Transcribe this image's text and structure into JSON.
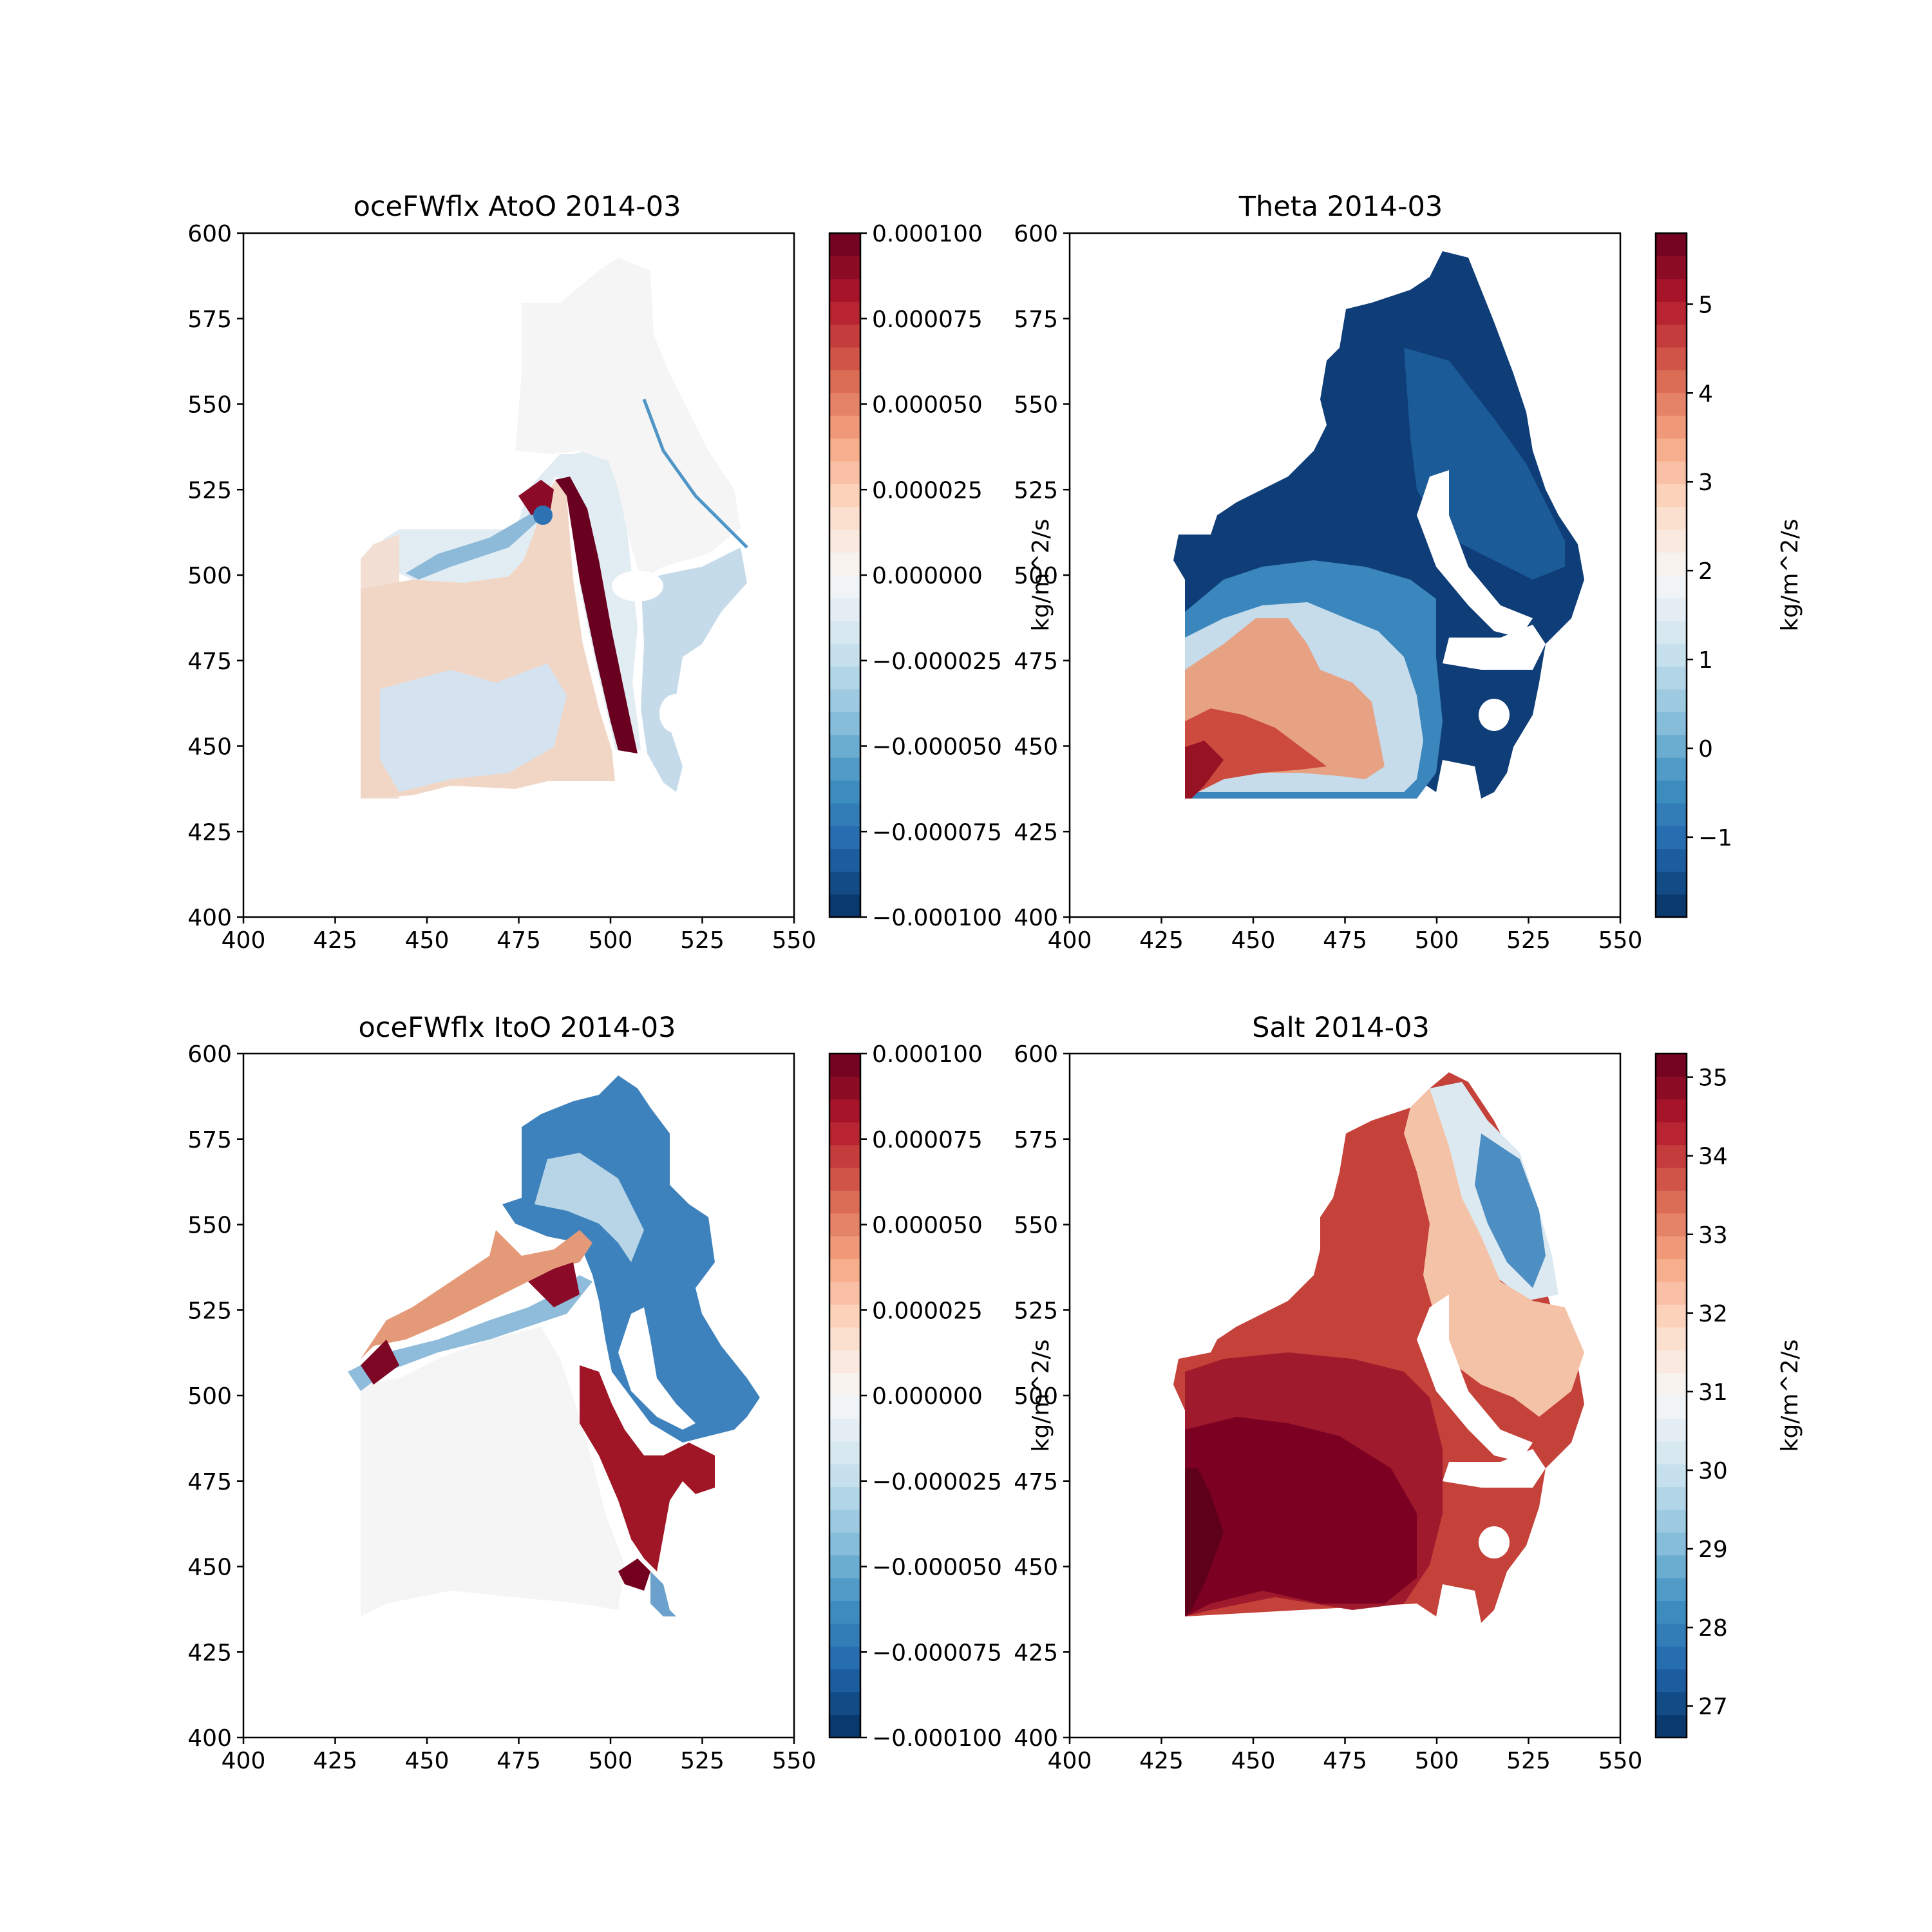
{
  "chart_data": [
    {
      "type": "heatmap",
      "title": "oceFWflx AtoO 2014-03",
      "x_ticks": [
        400,
        425,
        450,
        475,
        500,
        525,
        550
      ],
      "y_ticks": [
        400,
        425,
        450,
        475,
        500,
        525,
        550,
        575,
        600
      ],
      "xlim": [
        400,
        550
      ],
      "ylim": [
        400,
        600
      ],
      "colormap": "RdBu_r (discrete)",
      "colorbar": {
        "range": [
          -0.0001,
          0.0001
        ],
        "ticks": [
          -0.0001,
          -7.5e-05,
          -5e-05,
          -2.5e-05,
          0,
          2.5e-05,
          5e-05,
          7.5e-05,
          0.0001
        ],
        "tick_labels": [
          "−0.000100",
          "−0.000075",
          "−0.000050",
          "−0.000025",
          "0.000000",
          "0.000025",
          "0.000050",
          "0.000075",
          "0.000100"
        ],
        "label": "kg/m^2/s"
      }
    },
    {
      "type": "heatmap",
      "title": "Theta 2014-03",
      "x_ticks": [
        400,
        425,
        450,
        475,
        500,
        525,
        550
      ],
      "y_ticks": [
        400,
        425,
        450,
        475,
        500,
        525,
        550,
        575,
        600
      ],
      "xlim": [
        400,
        550
      ],
      "ylim": [
        400,
        600
      ],
      "colormap": "RdBu_r (discrete)",
      "colorbar": {
        "range": [
          -1.9,
          5.8
        ],
        "ticks": [
          -1,
          0,
          1,
          2,
          3,
          4,
          5
        ],
        "tick_labels": [
          "−1",
          "0",
          "1",
          "2",
          "3",
          "4",
          "5"
        ],
        "label": "kg/m^2/s"
      }
    },
    {
      "type": "heatmap",
      "title": "oceFWflx ItoO 2014-03",
      "x_ticks": [
        400,
        425,
        450,
        475,
        500,
        525,
        550
      ],
      "y_ticks": [
        400,
        425,
        450,
        475,
        500,
        525,
        550,
        575,
        600
      ],
      "xlim": [
        400,
        550
      ],
      "ylim": [
        400,
        600
      ],
      "colormap": "RdBu_r (discrete)",
      "colorbar": {
        "range": [
          -0.0001,
          0.0001
        ],
        "ticks": [
          -0.0001,
          -7.5e-05,
          -5e-05,
          -2.5e-05,
          0,
          2.5e-05,
          5e-05,
          7.5e-05,
          0.0001
        ],
        "tick_labels": [
          "−0.000100",
          "−0.000075",
          "−0.000050",
          "−0.000025",
          "0.000000",
          "0.000025",
          "0.000050",
          "0.000075",
          "0.000100"
        ],
        "label": "kg/m^2/s"
      }
    },
    {
      "type": "heatmap",
      "title": "Salt 2014-03",
      "x_ticks": [
        400,
        425,
        450,
        475,
        500,
        525,
        550
      ],
      "y_ticks": [
        400,
        425,
        450,
        475,
        500,
        525,
        550,
        575,
        600
      ],
      "xlim": [
        400,
        550
      ],
      "ylim": [
        400,
        600
      ],
      "colormap": "RdBu_r (discrete)",
      "colorbar": {
        "range": [
          26.6,
          35.3
        ],
        "ticks": [
          27,
          28,
          29,
          30,
          31,
          32,
          33,
          34,
          35
        ],
        "tick_labels": [
          "27",
          "28",
          "29",
          "30",
          "31",
          "32",
          "33",
          "34",
          "35"
        ],
        "label": "kg/m^2/s"
      }
    }
  ],
  "colors": {
    "cmap_stops": [
      "#053061",
      "#2166ac",
      "#4393c3",
      "#92c5de",
      "#d1e5f0",
      "#f7f7f7",
      "#fddbc7",
      "#f4a582",
      "#d6604d",
      "#b2182b",
      "#67001f"
    ]
  }
}
